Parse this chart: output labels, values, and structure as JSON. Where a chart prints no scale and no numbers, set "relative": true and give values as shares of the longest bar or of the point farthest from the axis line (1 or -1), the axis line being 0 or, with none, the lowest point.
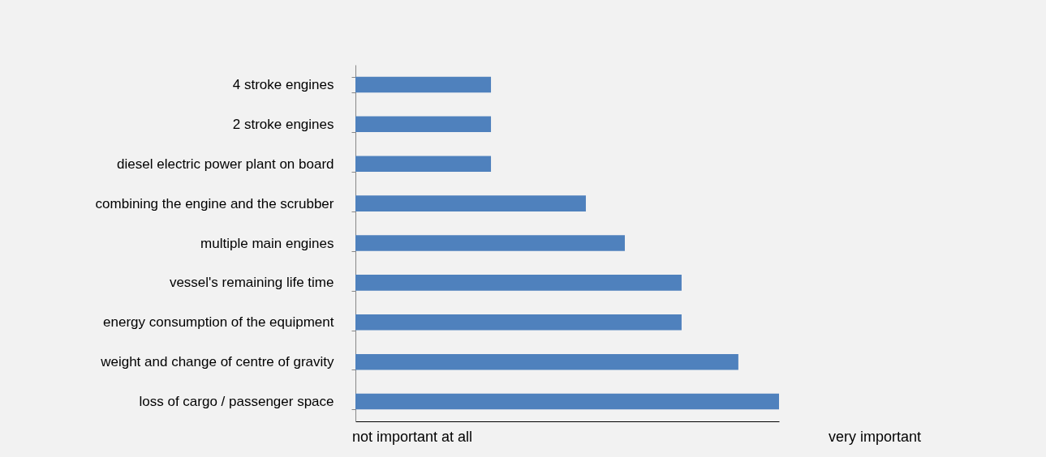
{
  "chart_data": {
    "type": "bar",
    "orientation": "horizontal",
    "relative": true,
    "categories": [
      "4 stroke engines",
      "2 stroke engines",
      "diesel electric power plant on board",
      "combining the engine and the scrubber",
      "multiple main engines",
      "vessel's remaining life time",
      "energy consumption of the equipment",
      "weight and change of centre of gravity",
      "loss of cargo / passenger space"
    ],
    "values": [
      0.32,
      0.32,
      0.32,
      0.544,
      0.636,
      0.77,
      0.77,
      0.904,
      1
    ],
    "color": "#4f81bd",
    "annotations": [
      "not important at all",
      "very important"
    ]
  }
}
